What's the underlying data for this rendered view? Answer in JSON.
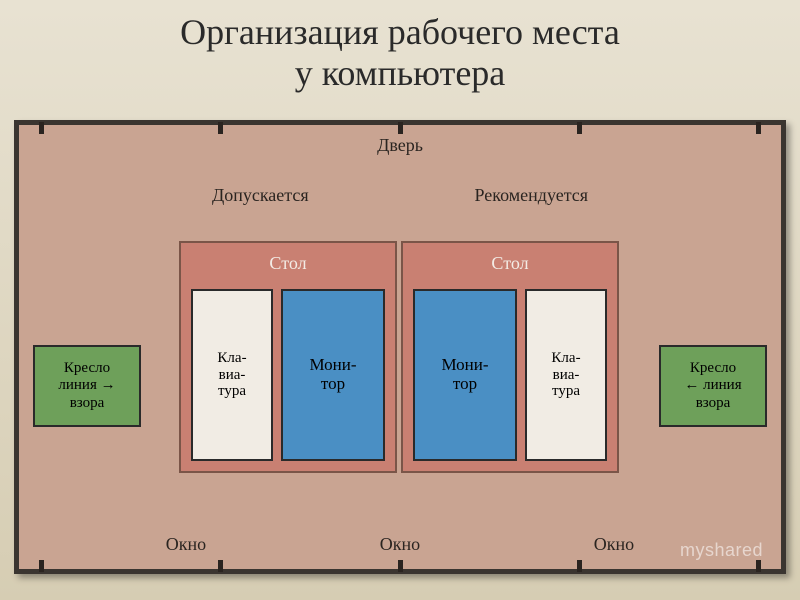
{
  "title_line1": "Организация рабочего места",
  "title_line2": "у компьютера",
  "title_fontsize": "36px",
  "title_color": "#2a2a2a",
  "slide_bg_top": "#e8e2d2",
  "slide_bg_bottom": "#d6cdb3",
  "diagram": {
    "bg_color": "#c9a492",
    "border_color": "#3a3530",
    "door_label": "Дверь",
    "window_label": "Окно",
    "label_fontsize": "18px",
    "left_zone_label": "Допускается",
    "right_zone_label": "Рекомендуется",
    "desk": {
      "label": "Стол",
      "bg_color": "#c98072",
      "label_color": "#f3ece6",
      "label_fontsize": "18px"
    },
    "keyboard": {
      "text": "Кла-\nвиа-\nтура",
      "bg_color": "#f1ece4",
      "fontsize": "15px"
    },
    "monitor": {
      "text": "Мони-\nтор",
      "bg_color": "#4a8fc4",
      "fontsize": "17px"
    },
    "chair_left": {
      "line1": "Кресло",
      "line2": "линия →",
      "line3": "взора",
      "bg_color": "#6ea05a",
      "fontsize": "15px"
    },
    "chair_right": {
      "line1": "Кресло",
      "line2": "← линия",
      "line3": "взора",
      "bg_color": "#6ea05a",
      "fontsize": "15px"
    },
    "tick_count": 5
  },
  "watermark": "myshared",
  "watermark_fontsize": "18px"
}
